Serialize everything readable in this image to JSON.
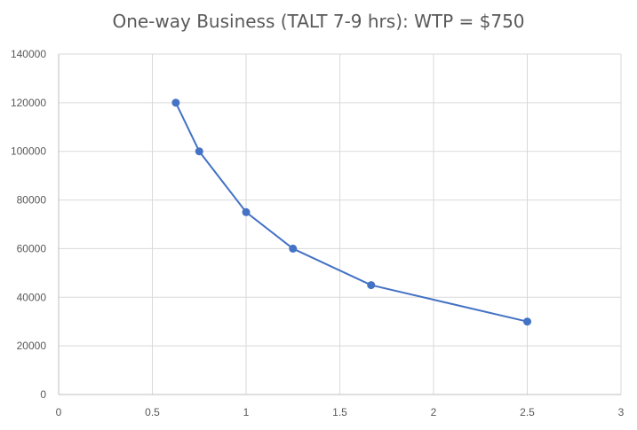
{
  "chart_data": {
    "type": "scatter",
    "title": "One-way Business (TALT 7-9 hrs): WTP = $750",
    "xlabel": "",
    "ylabel": "",
    "xlim": [
      0,
      3
    ],
    "ylim": [
      0,
      140000
    ],
    "x_ticks": [
      0,
      0.5,
      1,
      1.5,
      2,
      2.5,
      3
    ],
    "x_tick_labels": [
      "0",
      "0.5",
      "1",
      "1.5",
      "2",
      "2.5",
      "3"
    ],
    "y_ticks": [
      0,
      20000,
      40000,
      60000,
      80000,
      100000,
      120000,
      140000
    ],
    "y_tick_labels": [
      "0",
      "20000",
      "40000",
      "60000",
      "80000",
      "100000",
      "120000",
      "140000"
    ],
    "grid": true,
    "legend": "none",
    "series": [
      {
        "color": "#4472C4",
        "lines": true,
        "markers": true,
        "x": [
          0.625,
          0.75,
          1.0,
          1.25,
          1.667,
          2.5
        ],
        "y": [
          120000,
          100000,
          75000,
          60000,
          45000,
          30000
        ]
      }
    ]
  }
}
